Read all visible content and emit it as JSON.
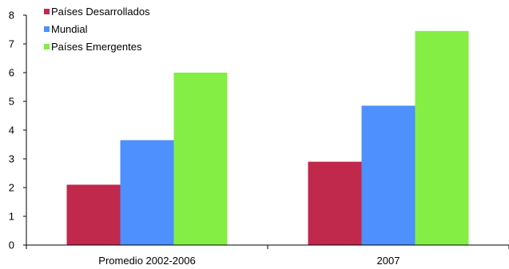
{
  "chart_data": {
    "type": "bar",
    "title": "",
    "xlabel": "",
    "ylabel": "",
    "ylim": [
      0,
      8
    ],
    "yticks": [
      0,
      1,
      2,
      3,
      4,
      5,
      6,
      7,
      8
    ],
    "grid": false,
    "legend_position": "top-left",
    "categories": [
      "Promedio 2002-2006",
      "2007"
    ],
    "series": [
      {
        "name": "Países Desarrollados",
        "color": "#c0284c",
        "values": [
          2.1,
          2.9
        ]
      },
      {
        "name": "Mundial",
        "color": "#4d90fe",
        "values": [
          3.65,
          4.85
        ]
      },
      {
        "name": "Países Emergentes",
        "color": "#84ee44",
        "values": [
          6.0,
          7.45
        ]
      }
    ]
  }
}
